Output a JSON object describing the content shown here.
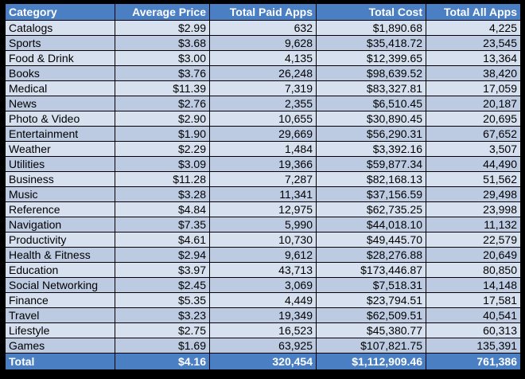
{
  "table": {
    "headers": [
      "Category",
      "Average Price",
      "Total Paid Apps",
      "Total Cost",
      "Total All Apps"
    ],
    "rows": [
      [
        "Catalogs",
        "$2.99",
        "632",
        "$1,890.68",
        "4,225"
      ],
      [
        "Sports",
        "$3.68",
        "9,628",
        "$35,418.72",
        "23,545"
      ],
      [
        "Food & Drink",
        "$3.00",
        "4,135",
        "$12,399.65",
        "13,364"
      ],
      [
        "Books",
        "$3.76",
        "26,248",
        "$98,639.52",
        "38,420"
      ],
      [
        "Medical",
        "$11.39",
        "7,319",
        "$83,327.81",
        "17,059"
      ],
      [
        "News",
        "$2.76",
        "2,355",
        "$6,510.45",
        "20,187"
      ],
      [
        "Photo & Video",
        "$2.90",
        "10,655",
        "$30,890.45",
        "20,695"
      ],
      [
        "Entertainment",
        "$1.90",
        "29,669",
        "$56,290.31",
        "67,652"
      ],
      [
        "Weather",
        "$2.29",
        "1,484",
        "$3,392.16",
        "3,507"
      ],
      [
        "Utilities",
        "$3.09",
        "19,366",
        "$59,877.34",
        "44,490"
      ],
      [
        "Business",
        "$11.28",
        "7,287",
        "$82,168.13",
        "51,562"
      ],
      [
        "Music",
        "$3.28",
        "11,341",
        "$37,156.59",
        "29,498"
      ],
      [
        "Reference",
        "$4.84",
        "12,975",
        "$62,735.25",
        "23,998"
      ],
      [
        "Navigation",
        "$7.35",
        "5,990",
        "$44,018.10",
        "11,132"
      ],
      [
        "Productivity",
        "$4.61",
        "10,730",
        "$49,445.70",
        "22,579"
      ],
      [
        "Health & Fitness",
        "$2.94",
        "9,612",
        "$28,276.88",
        "20,649"
      ],
      [
        "Education",
        "$3.97",
        "43,713",
        "$173,446.87",
        "80,850"
      ],
      [
        "Social Networking",
        "$2.45",
        "3,069",
        "$7,518.31",
        "14,148"
      ],
      [
        "Finance",
        "$5.35",
        "4,449",
        "$23,794.51",
        "17,581"
      ],
      [
        "Travel",
        "$3.23",
        "19,349",
        "$62,509.51",
        "40,541"
      ],
      [
        "Lifestyle",
        "$2.75",
        "16,523",
        "$45,380.77",
        "60,313"
      ],
      [
        "Games",
        "$1.69",
        "63,925",
        "$107,821.75",
        "135,391"
      ]
    ],
    "total": [
      "Total",
      "$4.16",
      "320,454",
      "$1,112,909.46",
      "761,386"
    ]
  },
  "colors": {
    "header_bg": "#4a7fc4",
    "row_light": "#d6e0ef",
    "row_dark": "#bccbe2",
    "border": "#000000"
  }
}
